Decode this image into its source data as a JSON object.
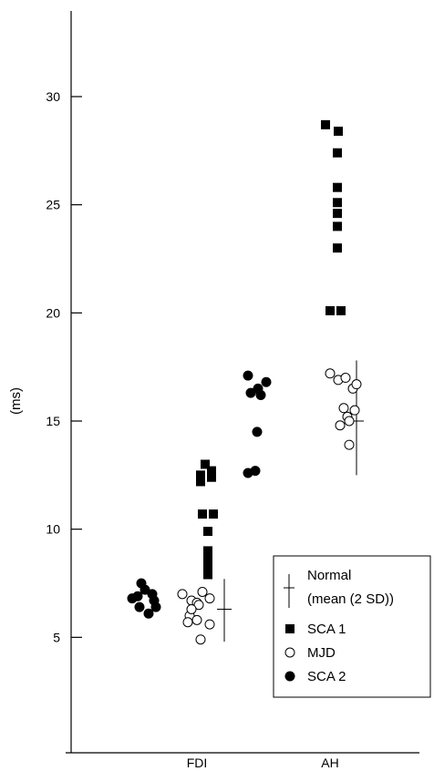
{
  "chart_data": {
    "type": "scatter",
    "ylabel": "(ms)",
    "ylim": [
      0,
      34
    ],
    "yticks": [
      5,
      10,
      15,
      20,
      25,
      30
    ],
    "categories": [
      "FDI",
      "AH"
    ],
    "grid": false,
    "legend_position": "bottom-right",
    "series": [
      {
        "name": "SCA 1",
        "marker": "filled-square",
        "points": [
          {
            "x": "FDI",
            "values": [
              13.0,
              12.7,
              12.5,
              12.4,
              12.2,
              10.7,
              10.7,
              9.9,
              9.0,
              8.6,
              8.3,
              7.9
            ]
          },
          {
            "x": "AH",
            "values": [
              28.7,
              28.4,
              27.4,
              25.8,
              25.1,
              24.6,
              24.0,
              23.0,
              20.1,
              20.1
            ]
          }
        ]
      },
      {
        "name": "MJD",
        "marker": "open-circle",
        "points": [
          {
            "x": "FDI",
            "values": [
              7.0,
              7.1,
              6.7,
              6.6,
              6.8,
              6.5,
              6.0,
              5.8,
              5.6,
              5.7,
              4.9,
              6.3
            ]
          },
          {
            "x": "AH",
            "values": [
              17.2,
              16.9,
              17.0,
              16.5,
              16.7,
              15.6,
              15.5,
              15.2,
              14.8,
              15.0,
              13.9
            ]
          }
        ]
      },
      {
        "name": "SCA 2",
        "marker": "filled-circle",
        "points": [
          {
            "x": "FDI",
            "values": [
              7.5,
              7.2,
              7.0,
              6.8,
              6.7,
              6.4,
              6.4,
              6.1,
              6.9
            ]
          },
          {
            "x": "AH",
            "values": [
              17.1,
              16.5,
              16.8,
              16.3,
              16.2,
              14.5,
              12.7,
              12.6
            ]
          }
        ]
      }
    ],
    "normal": {
      "label_line1": "Normal",
      "label_line2": "(mean (2 SD))",
      "items": [
        {
          "x": "FDI",
          "mean": 6.3,
          "low": 4.8,
          "high": 7.7
        },
        {
          "x": "AH",
          "mean": 15.0,
          "low": 12.5,
          "high": 17.8
        }
      ]
    }
  }
}
